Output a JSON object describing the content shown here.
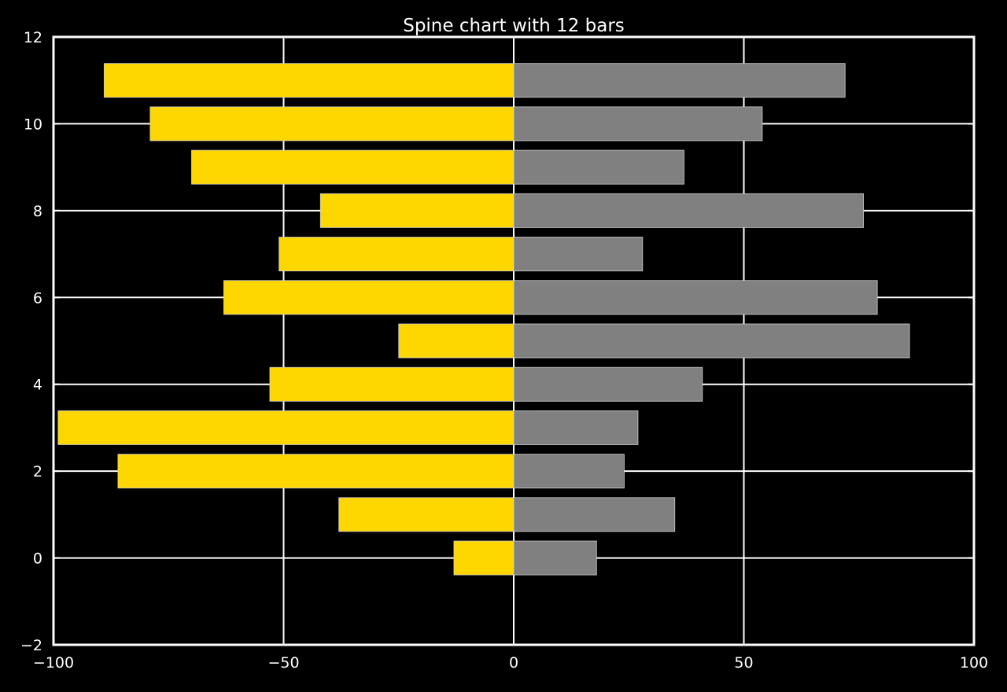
{
  "chart_data": {
    "type": "bar",
    "orientation": "horizontal",
    "title": "Spine chart with 12 bars",
    "xlabel": "",
    "ylabel": "",
    "xlim": [
      -100,
      100
    ],
    "ylim": [
      -2,
      12
    ],
    "x_ticks": [
      -100,
      -50,
      0,
      50,
      100
    ],
    "x_tick_labels": [
      "−100",
      "−50",
      "0",
      "50",
      "100"
    ],
    "y_ticks": [
      -2,
      0,
      2,
      4,
      6,
      8,
      10,
      12
    ],
    "y_tick_labels": [
      "−2",
      "0",
      "2",
      "4",
      "6",
      "8",
      "10",
      "12"
    ],
    "grid": true,
    "background": "#000000",
    "foreground": "#ffffff",
    "categories": [
      0,
      1,
      2,
      3,
      4,
      5,
      6,
      7,
      8,
      9,
      10,
      11
    ],
    "series": [
      {
        "color": "#ffd700",
        "values": [
          -13,
          -38,
          -86,
          -99,
          -53,
          -25,
          -63,
          -51,
          -42,
          -70,
          -79,
          -89
        ]
      },
      {
        "color": "#808080",
        "values": [
          18,
          35,
          24,
          27,
          41,
          86,
          79,
          28,
          76,
          37,
          54,
          72
        ]
      }
    ]
  }
}
